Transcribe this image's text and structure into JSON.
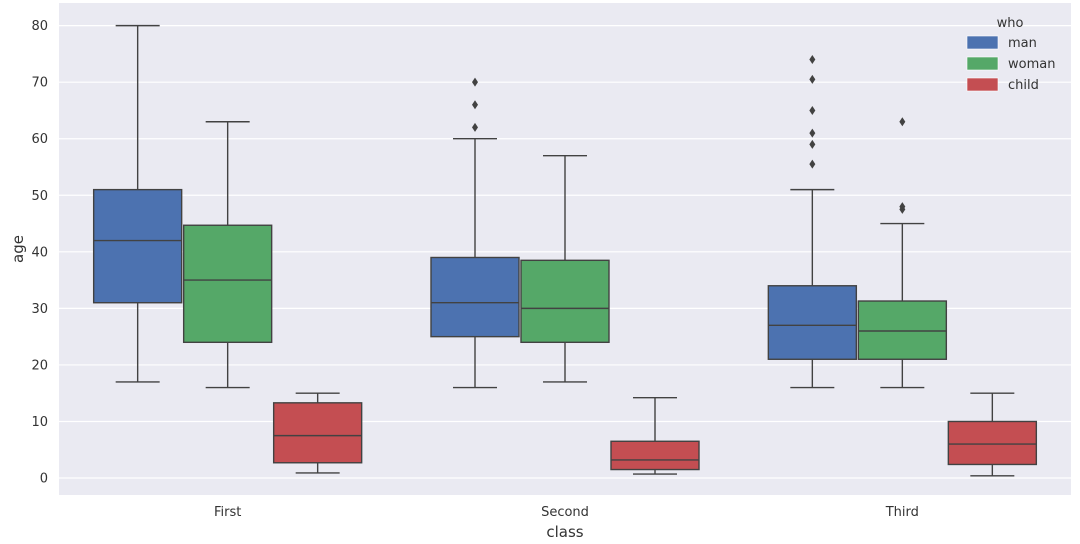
{
  "chart_data": {
    "type": "box",
    "xlabel": "class",
    "ylabel": "age",
    "categories": [
      "First",
      "Second",
      "Third"
    ],
    "ylim": [
      -3,
      84
    ],
    "yticks": [
      0,
      10,
      20,
      30,
      40,
      50,
      60,
      70,
      80
    ],
    "grid": true,
    "legend": {
      "title": "who",
      "placement": "top-right"
    },
    "series": [
      {
        "name": "man",
        "color": "#4c72b0",
        "boxes": [
          {
            "whisker_low": 17,
            "q1": 31,
            "median": 42,
            "q3": 51,
            "whisker_high": 80,
            "outliers": []
          },
          {
            "whisker_low": 16,
            "q1": 25,
            "median": 31,
            "q3": 39,
            "whisker_high": 60,
            "outliers": [
              62,
              66,
              70
            ]
          },
          {
            "whisker_low": 16,
            "q1": 21,
            "median": 27,
            "q3": 34,
            "whisker_high": 51,
            "outliers": [
              55.5,
              59,
              61,
              65,
              70.5,
              74
            ]
          }
        ]
      },
      {
        "name": "woman",
        "color": "#55a868",
        "boxes": [
          {
            "whisker_low": 16,
            "q1": 24,
            "median": 35,
            "q3": 44.7,
            "whisker_high": 63,
            "outliers": []
          },
          {
            "whisker_low": 17,
            "q1": 24,
            "median": 30,
            "q3": 38.5,
            "whisker_high": 57,
            "outliers": []
          },
          {
            "whisker_low": 16,
            "q1": 21,
            "median": 26,
            "q3": 31.3,
            "whisker_high": 45,
            "outliers": [
              47.5,
              48,
              63
            ]
          }
        ]
      },
      {
        "name": "child",
        "color": "#c44e52",
        "boxes": [
          {
            "whisker_low": 0.9,
            "q1": 2.7,
            "median": 7.5,
            "q3": 13.3,
            "whisker_high": 15,
            "outliers": []
          },
          {
            "whisker_low": 0.7,
            "q1": 1.5,
            "median": 3.2,
            "q3": 6.5,
            "whisker_high": 14.2,
            "outliers": []
          },
          {
            "whisker_low": 0.4,
            "q1": 2.4,
            "median": 6,
            "q3": 10,
            "whisker_high": 15,
            "outliers": []
          }
        ]
      }
    ]
  }
}
